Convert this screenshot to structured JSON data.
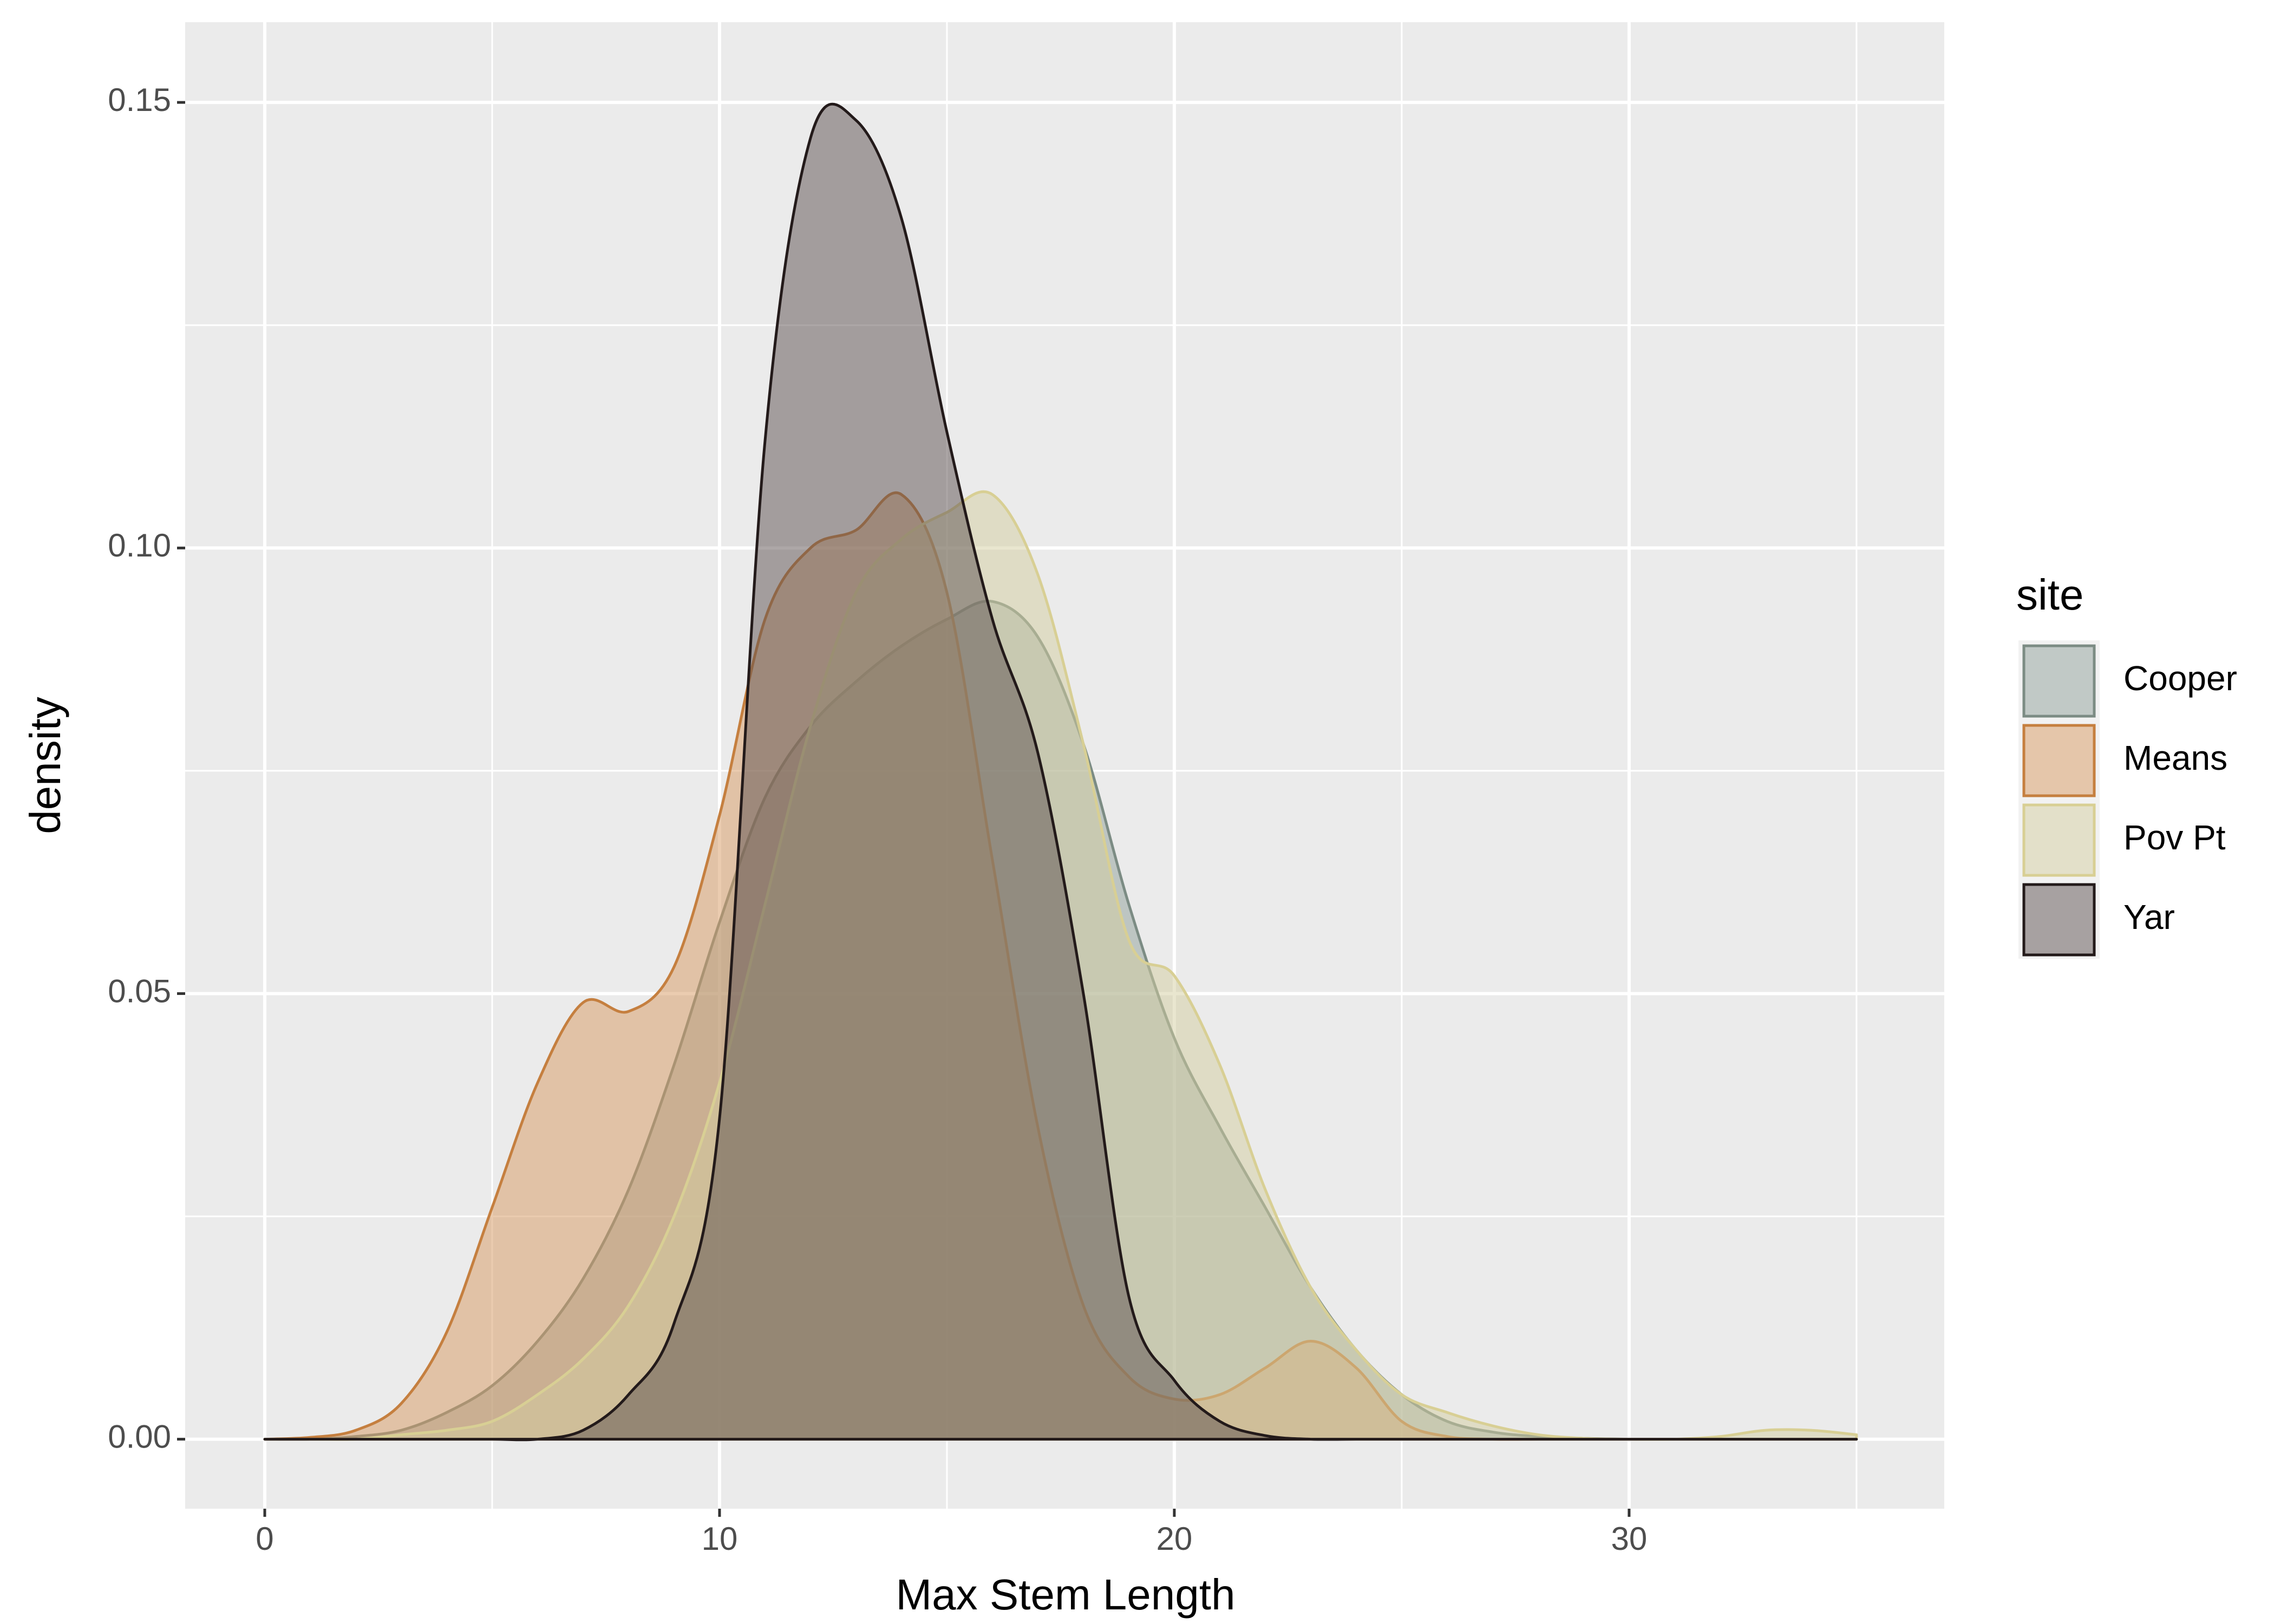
{
  "chart_data": {
    "type": "density",
    "xlabel": "Max Stem Length",
    "ylabel": "density",
    "legend_title": "site",
    "legend_position": "right",
    "grid": true,
    "xlim": [
      -1.75,
      36.93
    ],
    "ylim": [
      -0.0078,
      0.159
    ],
    "xticks": [
      0,
      10,
      20,
      30
    ],
    "yticks": [
      {
        "value": 0,
        "label": "0.00"
      },
      0.05,
      {
        "value": 0.1,
        "label": "0.10"
      },
      0.15
    ],
    "x": [
      0,
      1,
      2,
      3,
      4,
      5,
      6,
      7,
      8,
      9,
      10,
      11,
      12,
      13,
      14,
      15,
      16,
      17,
      18,
      19,
      20,
      21,
      22,
      23,
      24,
      25,
      26,
      27,
      28,
      29,
      30,
      31,
      32,
      33,
      34,
      35
    ],
    "series": [
      {
        "name": "Cooper",
        "color": "#7c8c84",
        "fill": "#8fa09a",
        "values": [
          0,
          0,
          0.0003,
          0.001,
          0.003,
          0.006,
          0.011,
          0.018,
          0.028,
          0.042,
          0.058,
          0.072,
          0.08,
          0.085,
          0.089,
          0.092,
          0.094,
          0.09,
          0.078,
          0.06,
          0.045,
          0.035,
          0.026,
          0.017,
          0.01,
          0.005,
          0.002,
          0.0008,
          0.0003,
          0.0001,
          0,
          0,
          0,
          0,
          0,
          0
        ]
      },
      {
        "name": "Means",
        "color": "#c57f3f",
        "fill": "#d89a62",
        "values": [
          0,
          0.0002,
          0.001,
          0.004,
          0.012,
          0.026,
          0.04,
          0.049,
          0.048,
          0.053,
          0.07,
          0.092,
          0.1,
          0.102,
          0.106,
          0.095,
          0.065,
          0.035,
          0.015,
          0.007,
          0.0045,
          0.005,
          0.008,
          0.011,
          0.008,
          0.002,
          0.0003,
          0,
          0,
          0,
          0,
          0,
          0,
          0,
          0,
          0
        ]
      },
      {
        "name": "Pov Pt",
        "color": "#d8cf94",
        "fill": "#d3cda0",
        "values": [
          0,
          0,
          0,
          0.0005,
          0.001,
          0.002,
          0.005,
          0.009,
          0.015,
          0.025,
          0.04,
          0.06,
          0.08,
          0.095,
          0.101,
          0.104,
          0.106,
          0.097,
          0.078,
          0.056,
          0.052,
          0.042,
          0.028,
          0.017,
          0.01,
          0.005,
          0.003,
          0.0015,
          0.0005,
          0.0001,
          0,
          0,
          0.0003,
          0.001,
          0.001,
          0.0005
        ]
      },
      {
        "name": "Yar",
        "color": "#231a1a",
        "fill": "#5b4f50",
        "values": [
          0,
          0,
          0,
          0,
          0,
          0,
          0,
          0.001,
          0.005,
          0.013,
          0.036,
          0.112,
          0.146,
          0.148,
          0.137,
          0.113,
          0.092,
          0.077,
          0.05,
          0.016,
          0.0066,
          0.002,
          0.0004,
          0,
          0,
          0,
          0,
          0,
          0,
          0,
          0,
          0,
          0,
          0,
          0,
          0
        ]
      }
    ]
  }
}
